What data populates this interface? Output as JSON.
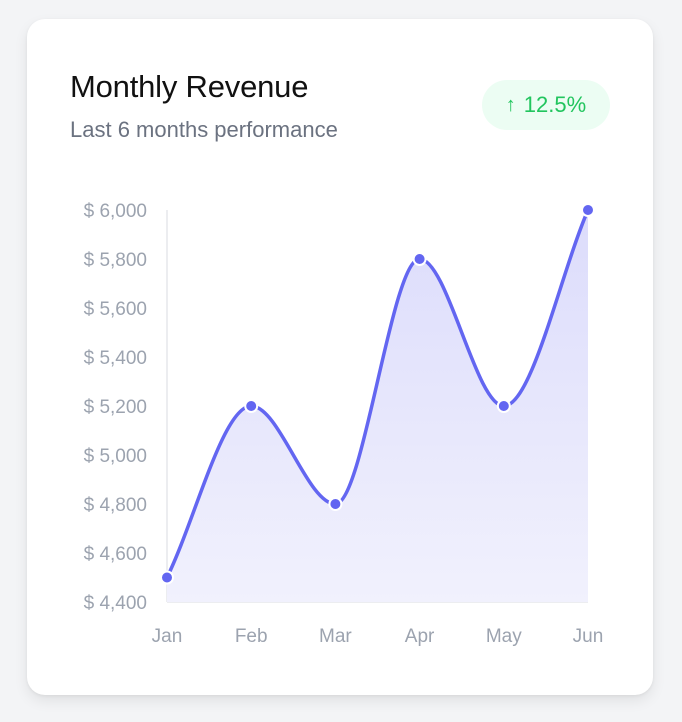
{
  "card": {
    "title": "Monthly Revenue",
    "subtitle": "Last 6 months performance",
    "badge": {
      "icon": "arrow-up-icon",
      "arrow": "↑",
      "text": "12.5%",
      "color": "#22c55e"
    }
  },
  "chart_data": {
    "type": "area",
    "title": "Monthly Revenue",
    "subtitle": "Last 6 months performance",
    "categories": [
      "Jan",
      "Feb",
      "Mar",
      "Apr",
      "May",
      "Jun"
    ],
    "series": [
      {
        "values": [
          4500,
          5200,
          4800,
          5800,
          5200,
          6000
        ]
      }
    ],
    "ylim": [
      4400,
      6000
    ],
    "yticks": [
      4400,
      4600,
      4800,
      5000,
      5200,
      5400,
      5600,
      5800,
      6000
    ],
    "ytick_labels": [
      "$ 4,400",
      "$ 4,600",
      "$ 4,800",
      "$ 5,000",
      "$ 5,200",
      "$ 5,400",
      "$ 5,600",
      "$ 5,800",
      "$ 6,000"
    ],
    "xlabel": "",
    "ylabel": "",
    "grid": false,
    "legend": "none",
    "line_color": "#6366f1",
    "fill_color_top": "#dcdcfb",
    "fill_color_bottom": "#f1f1fd",
    "axis_color": "#e5e7eb",
    "tick_label_color": "#9ca3af"
  }
}
